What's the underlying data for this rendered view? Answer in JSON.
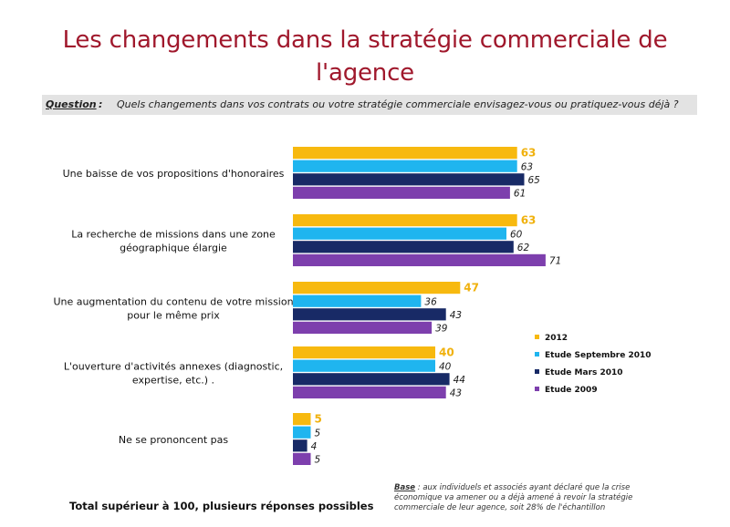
{
  "title_line1": "Les changements dans la stratégie commerciale de",
  "title_line2": "l'agence",
  "question": {
    "label": "Question",
    "separator": " :",
    "text": "Quels changements dans vos contrats ou votre stratégie commerciale envisagez-vous ou pratiquez-vous déjà ?"
  },
  "chart_data": {
    "type": "bar",
    "orientation": "horizontal",
    "categories": [
      [
        "Une baisse de vos propositions d'honoraires"
      ],
      [
        "La recherche de missions dans une zone",
        "géographique élargie"
      ],
      [
        "Une augmentation du contenu de votre mission",
        "pour le même prix"
      ],
      [
        "L'ouverture d'activités annexes (diagnostic,",
        "expertise, etc.)  ."
      ],
      [
        "Ne se prononcent pas"
      ]
    ],
    "series": [
      {
        "name": "2012",
        "color": "#f7b90f",
        "label_color": "#f0b10d",
        "values": [
          63,
          63,
          47,
          40,
          5
        ]
      },
      {
        "name": "Etude Septembre 2010",
        "color": "#1fb5ef",
        "label_color": "#1a1a1a",
        "values": [
          63,
          60,
          36,
          40,
          5
        ]
      },
      {
        "name": "Etude Mars 2010",
        "color": "#182a66",
        "label_color": "#1a1a1a",
        "values": [
          65,
          62,
          43,
          44,
          4
        ]
      },
      {
        "name": "Etude 2009",
        "color": "#7d3fad",
        "label_color": "#1a1a1a",
        "values": [
          61,
          71,
          39,
          43,
          5
        ]
      }
    ],
    "xlim": [
      0,
      100
    ],
    "grid": false,
    "legend_position": "right"
  },
  "footer_note": "Total supérieur à 100, plusieurs réponses possibles",
  "base": {
    "label": "Base",
    "lines": [
      " : aux individuels et associés ayant déclaré que la crise",
      "économique va amener ou a déjà amené à revoir la stratégie",
      "commerciale de leur agence, soit 28% de l'échantillon"
    ]
  }
}
